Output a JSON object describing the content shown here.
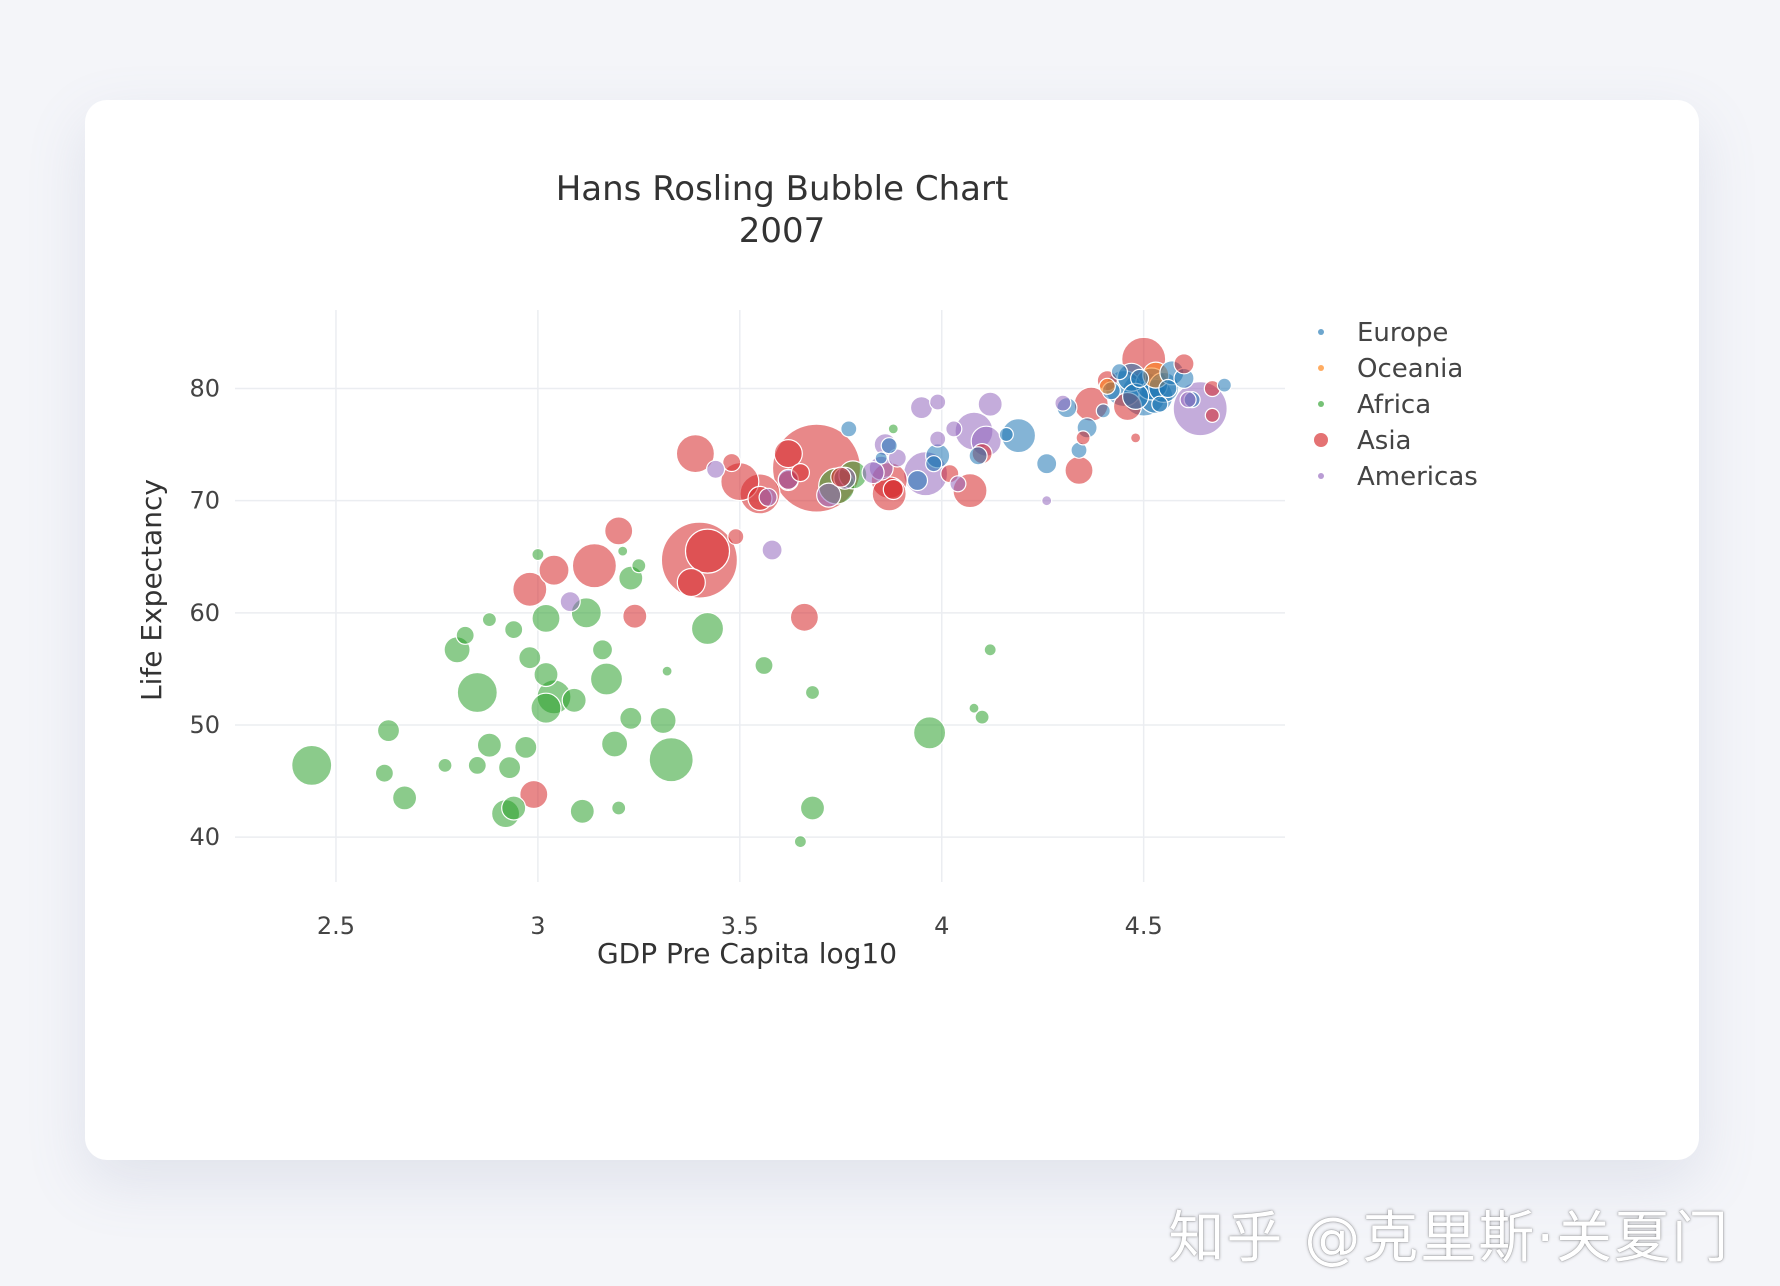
{
  "watermark": "知乎 @克里斯·关夏门",
  "chart_data": {
    "type": "scatter",
    "title": "Hans Rosling Bubble Chart",
    "subtitle": "2007",
    "xlabel": "GDP Pre Capita log10",
    "ylabel": "Life Expectancy",
    "xlim": [
      2.25,
      4.85
    ],
    "ylim": [
      36,
      87
    ],
    "xticks": [
      "2.5",
      "3",
      "3.5",
      "4",
      "4.5"
    ],
    "yticks": [
      "40",
      "50",
      "60",
      "70",
      "80"
    ],
    "grid": true,
    "legend_position": "top-right",
    "series": [
      {
        "name": "Europe",
        "color": "#1f77b4",
        "points": [
          [
            4.45,
            80.0,
            18
          ],
          [
            4.47,
            81.0,
            14
          ],
          [
            4.5,
            79.5,
            22
          ],
          [
            4.52,
            80.4,
            16
          ],
          [
            4.53,
            79.3,
            17
          ],
          [
            4.55,
            80.1,
            15
          ],
          [
            4.48,
            79.3,
            13
          ],
          [
            4.57,
            81.4,
            12
          ],
          [
            4.6,
            80.9,
            10
          ],
          [
            4.42,
            79.8,
            9
          ],
          [
            4.4,
            78.0,
            7
          ],
          [
            4.31,
            78.3,
            10
          ],
          [
            4.36,
            76.5,
            10
          ],
          [
            4.34,
            74.5,
            8
          ],
          [
            4.19,
            75.8,
            17
          ],
          [
            4.16,
            75.9,
            7
          ],
          [
            4.26,
            73.3,
            10
          ],
          [
            4.09,
            74.0,
            9
          ],
          [
            3.99,
            74.0,
            12
          ],
          [
            3.98,
            73.3,
            8
          ],
          [
            3.94,
            71.8,
            10
          ],
          [
            3.77,
            76.4,
            8
          ],
          [
            3.87,
            74.9,
            8
          ],
          [
            3.85,
            73.8,
            6
          ],
          [
            4.56,
            80.0,
            9
          ],
          [
            4.7,
            80.3,
            7
          ],
          [
            4.62,
            79.0,
            8
          ],
          [
            4.44,
            81.5,
            8
          ],
          [
            4.54,
            78.6,
            8
          ],
          [
            4.49,
            80.9,
            9
          ]
        ]
      },
      {
        "name": "Oceania",
        "color": "#ff7f0e",
        "points": [
          [
            4.53,
            81.2,
            13
          ],
          [
            4.41,
            80.2,
            8
          ]
        ]
      },
      {
        "name": "Africa",
        "color": "#2ca02c",
        "points": [
          [
            2.44,
            46.4,
            20
          ],
          [
            2.63,
            49.5,
            11
          ],
          [
            2.62,
            45.7,
            9
          ],
          [
            2.67,
            43.5,
            12
          ],
          [
            2.77,
            46.4,
            7
          ],
          [
            2.85,
            52.9,
            20
          ],
          [
            2.88,
            59.4,
            7
          ],
          [
            2.82,
            58.0,
            9
          ],
          [
            2.8,
            56.7,
            13
          ],
          [
            2.88,
            48.2,
            12
          ],
          [
            2.85,
            46.4,
            9
          ],
          [
            2.92,
            42.1,
            14
          ],
          [
            2.94,
            42.6,
            12
          ],
          [
            2.93,
            46.2,
            11
          ],
          [
            2.97,
            48.0,
            11
          ],
          [
            2.94,
            58.5,
            9
          ],
          [
            2.98,
            56.0,
            11
          ],
          [
            3.0,
            65.2,
            6
          ],
          [
            3.02,
            59.5,
            14
          ],
          [
            3.02,
            54.5,
            12
          ],
          [
            3.04,
            52.5,
            17
          ],
          [
            3.02,
            51.5,
            15
          ],
          [
            3.09,
            52.2,
            12
          ],
          [
            3.12,
            60.0,
            15
          ],
          [
            3.16,
            56.7,
            10
          ],
          [
            3.17,
            54.1,
            16
          ],
          [
            3.19,
            48.3,
            13
          ],
          [
            3.11,
            42.3,
            12
          ],
          [
            3.2,
            42.6,
            7
          ],
          [
            3.23,
            50.6,
            11
          ],
          [
            3.23,
            63.1,
            12
          ],
          [
            3.25,
            64.2,
            7
          ],
          [
            3.21,
            65.5,
            5
          ],
          [
            3.31,
            50.4,
            13
          ],
          [
            3.33,
            46.9,
            22
          ],
          [
            3.32,
            54.8,
            5
          ],
          [
            3.42,
            58.6,
            16
          ],
          [
            3.56,
            55.3,
            9
          ],
          [
            3.68,
            52.9,
            7
          ],
          [
            3.68,
            42.6,
            12
          ],
          [
            3.65,
            39.6,
            6
          ],
          [
            3.78,
            72.3,
            14
          ],
          [
            3.74,
            71.3,
            18
          ],
          [
            3.97,
            49.3,
            16
          ],
          [
            4.08,
            51.5,
            5
          ],
          [
            4.1,
            50.7,
            7
          ],
          [
            4.12,
            56.7,
            6
          ],
          [
            3.88,
            76.4,
            5
          ]
        ]
      },
      {
        "name": "Asia",
        "color": "#d62728",
        "points": [
          [
            3.69,
            72.9,
            44
          ],
          [
            3.4,
            64.7,
            38
          ],
          [
            3.42,
            65.5,
            22
          ],
          [
            3.38,
            62.7,
            14
          ],
          [
            2.98,
            62.1,
            17
          ],
          [
            3.04,
            63.8,
            15
          ],
          [
            3.14,
            64.2,
            22
          ],
          [
            3.2,
            67.3,
            14
          ],
          [
            3.24,
            59.7,
            12
          ],
          [
            2.99,
            43.8,
            14
          ],
          [
            3.39,
            74.2,
            19
          ],
          [
            3.48,
            73.4,
            9
          ],
          [
            3.5,
            71.7,
            19
          ],
          [
            3.55,
            70.6,
            20
          ],
          [
            3.62,
            74.2,
            14
          ],
          [
            3.49,
            66.8,
            8
          ],
          [
            3.66,
            59.6,
            14
          ],
          [
            3.65,
            72.5,
            9
          ],
          [
            3.55,
            70.2,
            12
          ],
          [
            3.87,
            71.8,
            18
          ],
          [
            3.87,
            70.6,
            17
          ],
          [
            4.07,
            70.9,
            17
          ],
          [
            4.02,
            72.4,
            9
          ],
          [
            4.1,
            74.2,
            10
          ],
          [
            4.34,
            72.7,
            14
          ],
          [
            4.37,
            78.6,
            17
          ],
          [
            4.46,
            78.4,
            14
          ],
          [
            4.5,
            82.6,
            22
          ],
          [
            4.6,
            82.2,
            10
          ],
          [
            4.67,
            80.0,
            8
          ],
          [
            4.67,
            77.6,
            7
          ],
          [
            4.35,
            75.6,
            7
          ],
          [
            4.41,
            80.7,
            10
          ],
          [
            4.48,
            75.6,
            5
          ],
          [
            3.88,
            71.0,
            10
          ],
          [
            3.75,
            72.1,
            10
          ],
          [
            3.62,
            71.8,
            10
          ]
        ]
      },
      {
        "name": "Americas",
        "color": "#9467bd",
        "points": [
          [
            4.64,
            78.2,
            27
          ],
          [
            4.08,
            76.2,
            19
          ],
          [
            3.96,
            72.4,
            22
          ],
          [
            4.11,
            75.3,
            15
          ],
          [
            4.12,
            78.6,
            12
          ],
          [
            3.95,
            78.3,
            11
          ],
          [
            3.99,
            78.8,
            8
          ],
          [
            4.03,
            76.4,
            8
          ],
          [
            3.99,
            75.5,
            8
          ],
          [
            3.86,
            75.0,
            11
          ],
          [
            3.89,
            73.8,
            9
          ],
          [
            3.83,
            72.5,
            11
          ],
          [
            3.85,
            72.9,
            12
          ],
          [
            3.76,
            72.0,
            11
          ],
          [
            3.72,
            70.5,
            12
          ],
          [
            3.58,
            65.6,
            10
          ],
          [
            3.44,
            72.8,
            9
          ],
          [
            3.62,
            71.9,
            10
          ],
          [
            3.57,
            70.3,
            9
          ],
          [
            3.08,
            61.0,
            10
          ],
          [
            4.26,
            70.0,
            5
          ],
          [
            4.3,
            78.7,
            8
          ],
          [
            4.61,
            79.0,
            8
          ],
          [
            4.04,
            71.5,
            8
          ]
        ]
      }
    ]
  }
}
